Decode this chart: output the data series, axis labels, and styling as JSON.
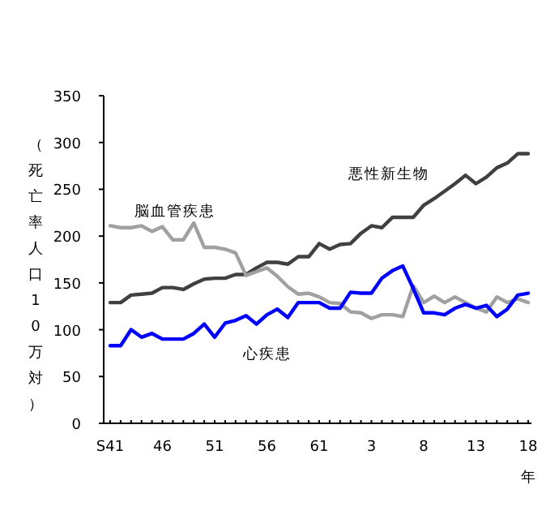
{
  "chart_data": {
    "type": "line",
    "ylabel": "（死亡率人口10万対）",
    "xlabel": "年",
    "categories": [
      "S41",
      null,
      null,
      null,
      null,
      "46",
      null,
      null,
      null,
      null,
      "51",
      null,
      null,
      null,
      null,
      "56",
      null,
      null,
      null,
      null,
      "61",
      null,
      null,
      null,
      null,
      "3",
      null,
      null,
      null,
      null,
      "8",
      null,
      null,
      null,
      null,
      "13",
      null,
      null,
      null,
      null,
      "18"
    ],
    "ylim": [
      0,
      350
    ],
    "yticks": [
      0,
      50,
      100,
      150,
      200,
      250,
      300,
      350
    ],
    "grid": false,
    "marker": "none",
    "line_style": "solid",
    "series": [
      {
        "name": "悪性新生物",
        "color": "#404040",
        "values": [
          129,
          129,
          137,
          138,
          139,
          145,
          145,
          143,
          149,
          154,
          155,
          155,
          159,
          159,
          166,
          172,
          172,
          170,
          178,
          178,
          192,
          186,
          191,
          192,
          203,
          211,
          209,
          220,
          220,
          220,
          233,
          240,
          248,
          256,
          265,
          256,
          263,
          273,
          278,
          288,
          288
        ]
      },
      {
        "name": "脳血管疾患",
        "color": "#a0a0a0",
        "values": [
          211,
          209,
          209,
          211,
          205,
          210,
          196,
          196,
          214,
          188,
          188,
          186,
          182,
          158,
          162,
          166,
          157,
          146,
          138,
          139,
          135,
          129,
          128,
          119,
          118,
          112,
          116,
          116,
          114,
          147,
          129,
          136,
          129,
          135,
          129,
          123,
          119,
          135,
          129,
          133,
          129
        ]
      },
      {
        "name": "心疾患",
        "color": "#0000ff",
        "values": [
          83,
          83,
          100,
          92,
          96,
          90,
          90,
          90,
          96,
          106,
          92,
          107,
          110,
          115,
          106,
          116,
          122,
          113,
          129,
          129,
          129,
          123,
          123,
          140,
          139,
          139,
          155,
          163,
          168,
          144,
          118,
          118,
          116,
          123,
          127,
          123,
          126,
          114,
          122,
          137,
          139
        ]
      }
    ]
  }
}
